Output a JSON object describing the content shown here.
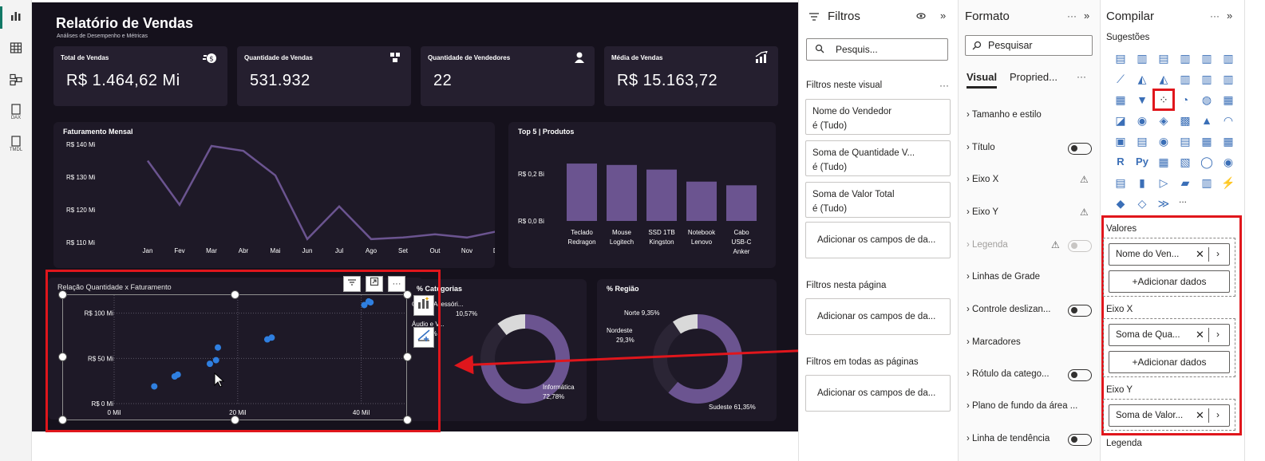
{
  "rail": {
    "icons": [
      "report-view-icon",
      "table-view-icon",
      "model-view-icon",
      "dax-query-icon",
      "tmdl-view-icon"
    ],
    "dax_label": "DAX",
    "tmdl_label": "TMDL"
  },
  "report": {
    "title": "Relatório de Vendas",
    "subtitle": "Análises de Desempenho e Métricas",
    "kpis": [
      {
        "title": "Total de Vendas",
        "value": "R$ 1.464,62 Mi",
        "icon": "money-icon"
      },
      {
        "title": "Quantidade de Vendas",
        "value": "531.932",
        "icon": "boxes-icon"
      },
      {
        "title": "Quantidade de Vendedores",
        "value": "22",
        "icon": "person-icon"
      },
      {
        "title": "Média de Vendas",
        "value": "R$ 15.163,72",
        "icon": "growth-chart-icon"
      }
    ],
    "monthly": {
      "title": "Faturamento Mensal",
      "y_ticks": [
        "R$ 140 Mi",
        "R$ 130 Mi",
        "R$ 120 Mi",
        "R$ 110 Mi"
      ]
    },
    "top5": {
      "title": "Top 5 | Produtos",
      "y_ticks": [
        "R$ 0,2 Bi",
        "R$ 0,0 Bi"
      ]
    },
    "scatter": {
      "title": "Relação Quantidade x Faturamento"
    },
    "categories": {
      "title": "% Categorias",
      "labels": [
        "Casa e Acessóri...",
        "10,57%",
        "Áudio e V...",
        "...%",
        "Informática",
        "72,78%"
      ]
    },
    "region": {
      "title": "% Região",
      "labels": [
        "Norte 9,35%",
        "Nordeste",
        "29,3%",
        "Sudeste 61,35%"
      ]
    }
  },
  "chart_data": [
    {
      "type": "line",
      "title": "Faturamento Mensal",
      "categories": [
        "Jan",
        "Fev",
        "Mar",
        "Abr",
        "Mai",
        "Jun",
        "Jul",
        "Ago",
        "Set",
        "Out",
        "Nov",
        "Dez"
      ],
      "values": [
        135.5,
        122,
        140,
        138.5,
        131,
        111.5,
        121.5,
        111.5,
        112,
        113,
        112,
        114
      ],
      "ylim": [
        110,
        140
      ],
      "color": "#6b5490"
    },
    {
      "type": "bar",
      "title": "Top 5 | Produtos",
      "categories": [
        "Teclado Redragon",
        "Mouse Logitech",
        "SSD 1TB Kingston",
        "Notebook Lenovo",
        "Cabo USB-C Anker"
      ],
      "category_lines": [
        [
          "Teclado",
          "Redragon"
        ],
        [
          "Mouse",
          "Logitech"
        ],
        [
          "SSD 1TB",
          "Kingston"
        ],
        [
          "Notebook",
          "Lenovo"
        ],
        [
          "Cabo",
          "USB-C",
          "Anker"
        ]
      ],
      "values": [
        0.248,
        0.242,
        0.222,
        0.17,
        0.154
      ],
      "ylim": [
        0,
        0.3
      ],
      "color": "#6b5490"
    },
    {
      "type": "scatter",
      "title": "Relação Quantidade x Faturamento",
      "x_ticks": [
        "0 Mil",
        "20 Mil",
        "40 Mil"
      ],
      "y_ticks": [
        "R$ 100 Mi",
        "R$ 50 Mi",
        "R$ 0 Mi"
      ],
      "xlim": [
        0,
        50
      ],
      "ylim": [
        0,
        120
      ],
      "points": [
        [
          6.5,
          19
        ],
        [
          9.8,
          30
        ],
        [
          10.3,
          32
        ],
        [
          15.5,
          44
        ],
        [
          16.5,
          48
        ],
        [
          16.8,
          62
        ],
        [
          24.8,
          71
        ],
        [
          25.5,
          73
        ],
        [
          40.5,
          109
        ],
        [
          41.2,
          113
        ],
        [
          41.5,
          112
        ]
      ],
      "color": "#2f7fe0"
    },
    {
      "type": "pie",
      "title": "% Categorias",
      "slices": [
        {
          "label": "Informática",
          "value": 72.78,
          "color": "#6b5490"
        },
        {
          "label": "Áudio e V...",
          "value": 16.65,
          "color": "#2b2535"
        },
        {
          "label": "Casa e Acessóri...",
          "value": 10.57,
          "color": "#d9d9d9"
        }
      ]
    },
    {
      "type": "pie",
      "title": "% Região",
      "slices": [
        {
          "label": "Sudeste",
          "value": 61.35,
          "color": "#6b5490"
        },
        {
          "label": "Nordeste",
          "value": 29.3,
          "color": "#2b2535"
        },
        {
          "label": "Norte",
          "value": 9.35,
          "color": "#d9d9d9"
        }
      ]
    }
  ],
  "filters": {
    "title": "Filtros",
    "search_placeholder": "Pesquis...",
    "on_visual": "Filtros neste visual",
    "cards": [
      {
        "field": "Nome do Vendedor",
        "state": "é (Tudo)"
      },
      {
        "field": "Soma de Quantidade V...",
        "state": "é (Tudo)"
      },
      {
        "field": "Soma de Valor Total",
        "state": "é (Tudo)"
      }
    ],
    "add_fields": "Adicionar os campos de da...",
    "on_page": "Filtros nesta página",
    "on_all": "Filtros em todas as páginas"
  },
  "format": {
    "title": "Formato",
    "search_placeholder": "Pesquisar",
    "tab_visual": "Visual",
    "tab_props": "Propried...",
    "items": [
      "Tamanho e estilo",
      "Título",
      "Eixo X",
      "Eixo Y",
      "Legenda",
      "Linhas de Grade",
      "Controle deslizan...",
      "Marcadores",
      "Rótulo da catego...",
      "Plano de fundo da área ...",
      "Linha de tendência"
    ]
  },
  "build": {
    "title": "Compilar",
    "suggestions": "Sugestões",
    "valores": "Valores",
    "valores_field": "Nome do Ven...",
    "eixo_x": "Eixo X",
    "eixo_x_field": "Soma de Qua...",
    "eixo_y": "Eixo Y",
    "eixo_y_field": "Soma de Valor...",
    "add_data": "+Adicionar dados",
    "legenda": "Legenda",
    "more": "..."
  },
  "colors": {
    "accent_red": "#e0161c",
    "canvas": "#15111c",
    "purple": "#6b5490"
  }
}
